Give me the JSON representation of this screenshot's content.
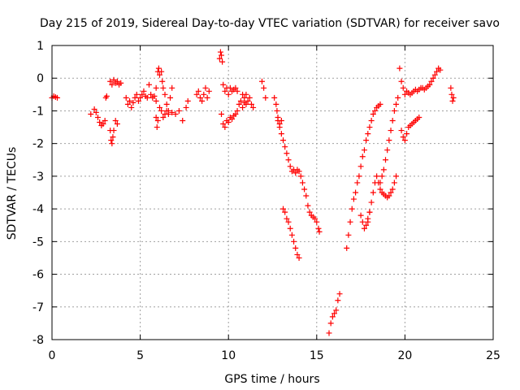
{
  "chart_data": {
    "type": "scatter",
    "title": "Day 215 of 2019, Sidereal Day-to-day VTEC variation (SDTVAR) for receiver savo",
    "xlabel": "GPS time / hours",
    "ylabel": "SDTVAR / TECUs",
    "xlim": [
      0,
      25
    ],
    "ylim": [
      -8,
      1
    ],
    "xticks": [
      0,
      5,
      10,
      15,
      20,
      25
    ],
    "yticks": [
      -8,
      -7,
      -6,
      -5,
      -4,
      -3,
      -2,
      -1,
      0,
      1
    ],
    "grid": true,
    "marker": "plus",
    "color": "#ff0000",
    "series": [
      {
        "name": "SDTVAR",
        "points": [
          [
            0.0,
            -0.6
          ],
          [
            0.1,
            -0.55
          ],
          [
            0.2,
            -0.58
          ],
          [
            0.3,
            -0.6
          ],
          [
            2.2,
            -1.1
          ],
          [
            2.4,
            -0.95
          ],
          [
            2.5,
            -1.05
          ],
          [
            2.6,
            -1.2
          ],
          [
            2.7,
            -1.35
          ],
          [
            2.8,
            -1.45
          ],
          [
            2.9,
            -1.4
          ],
          [
            3.0,
            -1.3
          ],
          [
            3.05,
            -0.6
          ],
          [
            3.1,
            -0.55
          ],
          [
            3.3,
            -1.6
          ],
          [
            3.35,
            -1.9
          ],
          [
            3.4,
            -2.0
          ],
          [
            3.45,
            -1.8
          ],
          [
            3.5,
            -1.6
          ],
          [
            3.6,
            -1.3
          ],
          [
            3.7,
            -1.4
          ],
          [
            3.3,
            -0.1
          ],
          [
            3.4,
            -0.2
          ],
          [
            3.5,
            -0.05
          ],
          [
            3.6,
            -0.15
          ],
          [
            3.7,
            -0.1
          ],
          [
            3.8,
            -0.2
          ],
          [
            3.9,
            -0.15
          ],
          [
            4.2,
            -0.6
          ],
          [
            4.3,
            -0.8
          ],
          [
            4.4,
            -0.7
          ],
          [
            4.5,
            -0.9
          ],
          [
            4.6,
            -0.75
          ],
          [
            4.7,
            -0.6
          ],
          [
            4.8,
            -0.5
          ],
          [
            4.9,
            -0.7
          ],
          [
            5.0,
            -0.6
          ],
          [
            5.1,
            -0.5
          ],
          [
            5.2,
            -0.4
          ],
          [
            5.3,
            -0.55
          ],
          [
            5.4,
            -0.6
          ],
          [
            5.5,
            -0.2
          ],
          [
            5.6,
            -0.5
          ],
          [
            5.7,
            -0.6
          ],
          [
            5.8,
            -0.55
          ],
          [
            5.9,
            -0.7
          ],
          [
            5.9,
            -0.3
          ],
          [
            6.0,
            0.2
          ],
          [
            6.05,
            0.3
          ],
          [
            6.1,
            0.1
          ],
          [
            6.2,
            0.2
          ],
          [
            6.25,
            -0.1
          ],
          [
            6.3,
            -0.3
          ],
          [
            6.4,
            -0.5
          ],
          [
            6.5,
            -0.8
          ],
          [
            6.6,
            -1.0
          ],
          [
            6.7,
            -0.6
          ],
          [
            6.8,
            -0.3
          ],
          [
            5.9,
            -1.2
          ],
          [
            5.95,
            -1.5
          ],
          [
            6.0,
            -1.3
          ],
          [
            6.1,
            -0.9
          ],
          [
            6.2,
            -1.0
          ],
          [
            6.3,
            -1.2
          ],
          [
            6.4,
            -1.1
          ],
          [
            6.5,
            -1.0
          ],
          [
            6.6,
            -1.1
          ],
          [
            6.8,
            -1.05
          ],
          [
            7.0,
            -1.1
          ],
          [
            7.2,
            -1.0
          ],
          [
            7.4,
            -1.3
          ],
          [
            7.6,
            -0.9
          ],
          [
            7.7,
            -0.7
          ],
          [
            8.2,
            -0.5
          ],
          [
            8.3,
            -0.4
          ],
          [
            8.4,
            -0.6
          ],
          [
            8.5,
            -0.7
          ],
          [
            8.6,
            -0.5
          ],
          [
            8.7,
            -0.3
          ],
          [
            8.8,
            -0.6
          ],
          [
            8.9,
            -0.4
          ],
          [
            9.5,
            0.6
          ],
          [
            9.55,
            0.8
          ],
          [
            9.6,
            0.7
          ],
          [
            9.65,
            0.5
          ],
          [
            9.7,
            -0.2
          ],
          [
            9.8,
            -0.4
          ],
          [
            9.9,
            -0.3
          ],
          [
            10.0,
            -0.5
          ],
          [
            10.1,
            -0.3
          ],
          [
            10.2,
            -0.4
          ],
          [
            10.3,
            -0.35
          ],
          [
            10.4,
            -0.3
          ],
          [
            10.5,
            -0.4
          ],
          [
            9.6,
            -1.1
          ],
          [
            9.7,
            -1.4
          ],
          [
            9.8,
            -1.5
          ],
          [
            9.9,
            -1.3
          ],
          [
            10.0,
            -1.35
          ],
          [
            10.1,
            -1.2
          ],
          [
            10.2,
            -1.25
          ],
          [
            10.3,
            -1.15
          ],
          [
            10.4,
            -1.1
          ],
          [
            10.5,
            -1.0
          ],
          [
            10.6,
            -0.8
          ],
          [
            10.7,
            -0.7
          ],
          [
            10.8,
            -0.9
          ],
          [
            10.9,
            -0.75
          ],
          [
            11.0,
            -0.8
          ],
          [
            11.1,
            -0.7
          ],
          [
            11.2,
            -0.6
          ],
          [
            11.3,
            -0.8
          ],
          [
            11.4,
            -0.9
          ],
          [
            10.8,
            -0.5
          ],
          [
            10.9,
            -0.6
          ],
          [
            11.0,
            -0.5
          ],
          [
            11.9,
            -0.1
          ],
          [
            12.0,
            -0.3
          ],
          [
            12.1,
            -0.6
          ],
          [
            12.6,
            -0.6
          ],
          [
            12.7,
            -0.8
          ],
          [
            12.75,
            -1.0
          ],
          [
            12.8,
            -1.2
          ],
          [
            12.9,
            -1.5
          ],
          [
            13.0,
            -1.7
          ],
          [
            13.1,
            -1.9
          ],
          [
            13.2,
            -2.1
          ],
          [
            13.3,
            -2.3
          ],
          [
            13.4,
            -2.5
          ],
          [
            13.5,
            -2.7
          ],
          [
            13.6,
            -2.85
          ],
          [
            13.7,
            -2.8
          ],
          [
            13.8,
            -2.9
          ],
          [
            13.9,
            -2.8
          ],
          [
            14.0,
            -2.85
          ],
          [
            12.8,
            -1.3
          ],
          [
            12.9,
            -1.4
          ],
          [
            13.0,
            -1.3
          ],
          [
            14.1,
            -3.0
          ],
          [
            14.2,
            -3.2
          ],
          [
            14.3,
            -3.4
          ],
          [
            14.4,
            -3.6
          ],
          [
            14.5,
            -3.9
          ],
          [
            14.6,
            -4.1
          ],
          [
            14.7,
            -4.2
          ],
          [
            14.8,
            -4.25
          ],
          [
            14.9,
            -4.3
          ],
          [
            15.0,
            -4.4
          ],
          [
            15.1,
            -4.6
          ],
          [
            15.15,
            -4.7
          ],
          [
            13.1,
            -4.0
          ],
          [
            13.2,
            -4.1
          ],
          [
            13.3,
            -4.3
          ],
          [
            13.4,
            -4.4
          ],
          [
            13.5,
            -4.6
          ],
          [
            13.6,
            -4.8
          ],
          [
            13.7,
            -5.0
          ],
          [
            13.8,
            -5.2
          ],
          [
            13.9,
            -5.4
          ],
          [
            14.0,
            -5.5
          ],
          [
            15.7,
            -7.8
          ],
          [
            15.8,
            -7.5
          ],
          [
            15.9,
            -7.3
          ],
          [
            16.0,
            -7.2
          ],
          [
            16.1,
            -7.1
          ],
          [
            16.2,
            -6.8
          ],
          [
            16.3,
            -6.6
          ],
          [
            16.7,
            -5.2
          ],
          [
            16.8,
            -4.8
          ],
          [
            16.9,
            -4.4
          ],
          [
            17.0,
            -4.0
          ],
          [
            17.1,
            -3.7
          ],
          [
            17.2,
            -3.5
          ],
          [
            17.3,
            -3.2
          ],
          [
            17.4,
            -3.0
          ],
          [
            17.5,
            -2.7
          ],
          [
            17.6,
            -2.4
          ],
          [
            17.7,
            -2.2
          ],
          [
            17.8,
            -1.9
          ],
          [
            17.9,
            -1.7
          ],
          [
            18.0,
            -1.5
          ],
          [
            18.1,
            -1.3
          ],
          [
            18.2,
            -1.1
          ],
          [
            18.3,
            -1.0
          ],
          [
            18.4,
            -0.9
          ],
          [
            18.5,
            -0.85
          ],
          [
            18.6,
            -0.8
          ],
          [
            17.5,
            -4.2
          ],
          [
            17.6,
            -4.4
          ],
          [
            17.7,
            -4.6
          ],
          [
            17.8,
            -4.5
          ],
          [
            17.9,
            -4.4
          ],
          [
            18.0,
            -4.1
          ],
          [
            18.1,
            -3.8
          ],
          [
            18.2,
            -3.5
          ],
          [
            18.3,
            -3.2
          ],
          [
            18.4,
            -3.0
          ],
          [
            18.5,
            -3.2
          ],
          [
            18.6,
            -3.4
          ],
          [
            18.7,
            -3.5
          ],
          [
            18.8,
            -3.55
          ],
          [
            18.9,
            -3.6
          ],
          [
            19.0,
            -3.65
          ],
          [
            19.1,
            -3.6
          ],
          [
            19.2,
            -3.5
          ],
          [
            19.3,
            -3.4
          ],
          [
            19.4,
            -3.2
          ],
          [
            19.5,
            -3.0
          ],
          [
            17.9,
            -4.3
          ],
          [
            18.0,
            -4.1
          ],
          [
            18.6,
            -3.2
          ],
          [
            18.7,
            -3.0
          ],
          [
            18.8,
            -2.8
          ],
          [
            18.9,
            -2.5
          ],
          [
            19.0,
            -2.2
          ],
          [
            19.1,
            -1.9
          ],
          [
            19.2,
            -1.6
          ],
          [
            19.3,
            -1.3
          ],
          [
            19.4,
            -1.0
          ],
          [
            19.5,
            -0.8
          ],
          [
            19.6,
            -0.6
          ],
          [
            19.7,
            0.3
          ],
          [
            19.8,
            -0.1
          ],
          [
            19.9,
            -0.3
          ],
          [
            20.0,
            -0.5
          ],
          [
            20.1,
            -0.4
          ],
          [
            20.2,
            -0.45
          ],
          [
            20.3,
            -0.5
          ],
          [
            20.4,
            -0.45
          ],
          [
            20.5,
            -0.4
          ],
          [
            20.6,
            -0.35
          ],
          [
            20.7,
            -0.4
          ],
          [
            20.8,
            -0.35
          ],
          [
            20.9,
            -0.3
          ],
          [
            21.0,
            -0.3
          ],
          [
            21.1,
            -0.35
          ],
          [
            21.2,
            -0.3
          ],
          [
            21.3,
            -0.25
          ],
          [
            21.4,
            -0.2
          ],
          [
            21.5,
            -0.1
          ],
          [
            21.6,
            0.0
          ],
          [
            21.7,
            0.1
          ],
          [
            21.8,
            0.2
          ],
          [
            21.9,
            0.3
          ],
          [
            22.0,
            0.25
          ],
          [
            19.8,
            -1.6
          ],
          [
            19.9,
            -1.8
          ],
          [
            20.0,
            -1.9
          ],
          [
            20.1,
            -1.7
          ],
          [
            20.2,
            -1.5
          ],
          [
            20.3,
            -1.45
          ],
          [
            20.4,
            -1.4
          ],
          [
            20.5,
            -1.35
          ],
          [
            20.6,
            -1.3
          ],
          [
            20.7,
            -1.25
          ],
          [
            20.8,
            -1.2
          ],
          [
            22.6,
            -0.3
          ],
          [
            22.65,
            -0.5
          ],
          [
            22.7,
            -0.7
          ],
          [
            22.75,
            -0.6
          ]
        ]
      }
    ]
  }
}
